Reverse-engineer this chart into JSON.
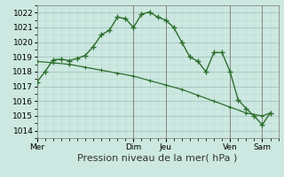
{
  "background_color": "#cce8e0",
  "grid_major_color": "#aaccc4",
  "grid_minor_color": "#c0ddd8",
  "line_color": "#2d6e2d",
  "vline_color": "#888888",
  "ylim": [
    1013.5,
    1022.5
  ],
  "xlim": [
    0,
    180
  ],
  "yticks": [
    1014,
    1015,
    1016,
    1017,
    1018,
    1019,
    1020,
    1021,
    1022
  ],
  "xlabel": "Pression niveau de la mer( hPa )",
  "xlabel_fontsize": 8,
  "tick_fontsize": 6.5,
  "day_labels": [
    "Mer",
    "Dim",
    "Jeu",
    "Ven",
    "Sam"
  ],
  "day_positions": [
    0,
    72,
    96,
    144,
    168
  ],
  "vline_positions": [
    72,
    96,
    144,
    168
  ],
  "line1_x": [
    0,
    6,
    12,
    18,
    24,
    30,
    36,
    42,
    48,
    54,
    60,
    66,
    72,
    78,
    84,
    90,
    96,
    102,
    108,
    114,
    120,
    126,
    132,
    138,
    144,
    150,
    156,
    162,
    168,
    174
  ],
  "line1_y": [
    1017.3,
    1018.0,
    1018.8,
    1018.85,
    1018.75,
    1018.9,
    1019.1,
    1019.7,
    1020.5,
    1020.8,
    1021.7,
    1021.6,
    1021.0,
    1021.9,
    1022.05,
    1021.7,
    1021.5,
    1021.0,
    1020.0,
    1019.0,
    1018.7,
    1018.0,
    1019.3,
    1019.3,
    1018.0,
    1016.1,
    1015.5,
    1015.0,
    1014.4,
    1015.2
  ],
  "line2_x": [
    0,
    12,
    24,
    36,
    48,
    60,
    72,
    84,
    96,
    108,
    120,
    132,
    144,
    156,
    168,
    174
  ],
  "line2_y": [
    1018.7,
    1018.6,
    1018.5,
    1018.3,
    1018.1,
    1017.9,
    1017.7,
    1017.4,
    1017.1,
    1016.8,
    1016.4,
    1016.0,
    1015.6,
    1015.2,
    1015.0,
    1015.2
  ]
}
